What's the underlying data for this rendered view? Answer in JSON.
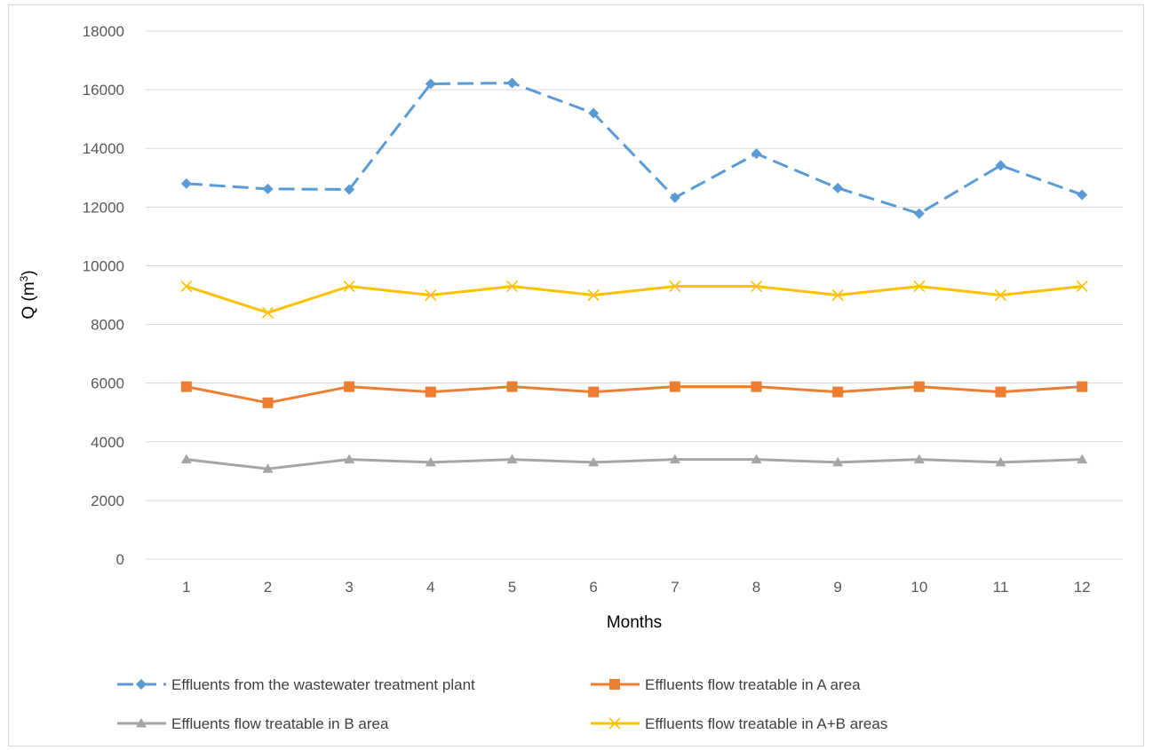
{
  "chart_data": {
    "type": "line",
    "title": "",
    "xlabel": "Months",
    "ylabel": "Q (m",
    "ylabel_sup": "3",
    "ylabel_end": ")",
    "categories": [
      "1",
      "2",
      "3",
      "4",
      "5",
      "6",
      "7",
      "8",
      "9",
      "10",
      "11",
      "12"
    ],
    "ylim": [
      0,
      18000
    ],
    "yticks": [
      "0",
      "2000",
      "4000",
      "6000",
      "8000",
      "10000",
      "12000",
      "14000",
      "16000",
      "18000"
    ],
    "grid": true,
    "legend_position": "bottom",
    "series": [
      {
        "name": "Effluents from the wastewater treatment plant",
        "color": "#5b9bd5",
        "marker": "diamond",
        "dash": true,
        "values": [
          12800,
          12620,
          12600,
          16200,
          16230,
          15200,
          12320,
          13820,
          12650,
          11780,
          13420,
          12420
        ]
      },
      {
        "name": "Effluents flow treatable in A area",
        "color": "#ed7d31",
        "marker": "square",
        "dash": false,
        "values": [
          5880,
          5330,
          5880,
          5700,
          5880,
          5700,
          5880,
          5880,
          5700,
          5880,
          5700,
          5880
        ]
      },
      {
        "name": "Effluents flow treatable in B area",
        "color": "#a5a5a5",
        "marker": "triangle",
        "dash": false,
        "values": [
          3400,
          3080,
          3400,
          3300,
          3400,
          3300,
          3400,
          3400,
          3300,
          3400,
          3300,
          3400
        ]
      },
      {
        "name": "Effluents flow treatable in A+B areas",
        "color": "#ffc000",
        "marker": "x",
        "dash": false,
        "values": [
          9300,
          8400,
          9300,
          9000,
          9300,
          9000,
          9300,
          9300,
          9000,
          9300,
          9000,
          9300
        ]
      }
    ]
  }
}
